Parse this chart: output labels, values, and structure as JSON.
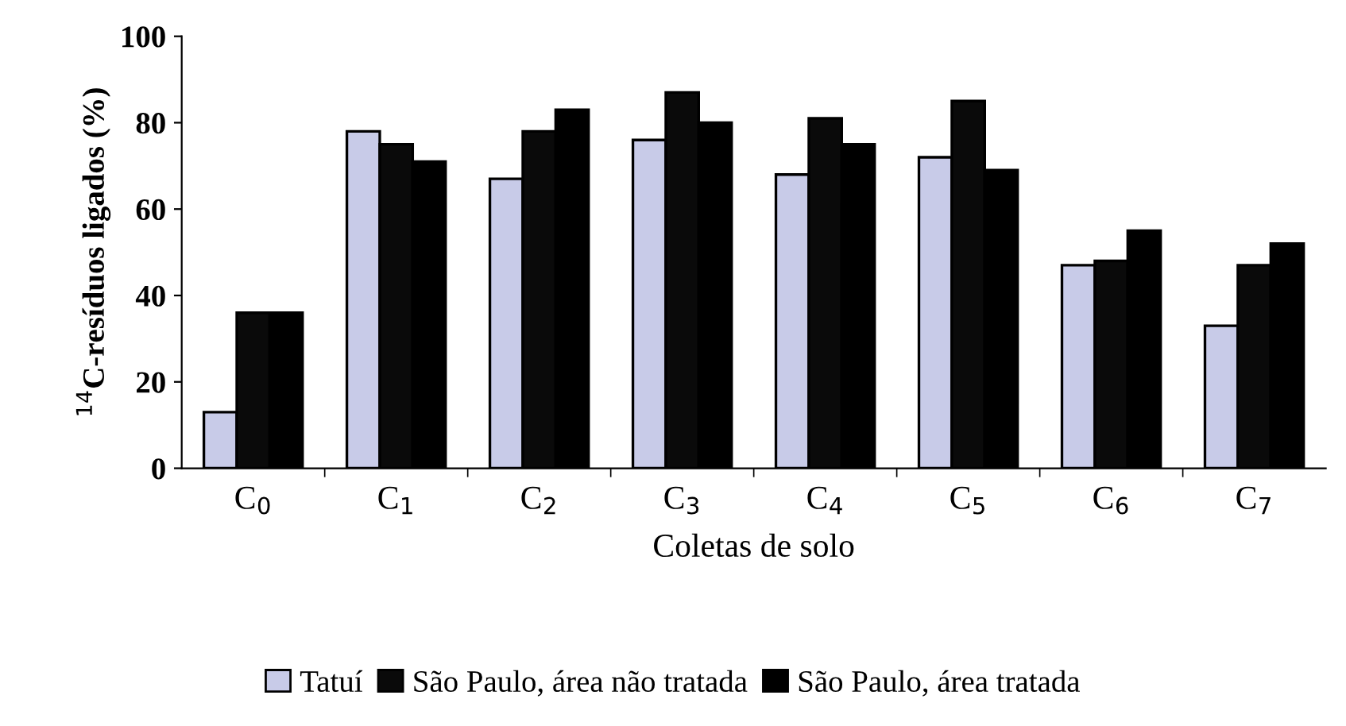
{
  "chart_data": {
    "type": "bar",
    "xlabel": "Coletas de solo",
    "ylabel": "$^{14}$C-resíduos ligados (%)",
    "categories": [
      "C$_{0}$",
      "C$_{1}$",
      "C$_{2}$",
      "C$_{3}$",
      "C$_{4}$",
      "C$_{5}$",
      "C$_{6}$",
      "C$_{7}$"
    ],
    "series": [
      {
        "name": "Tatuí",
        "color": "#c8cbe8",
        "values": [
          13,
          78,
          67,
          76,
          68,
          72,
          47,
          33
        ]
      },
      {
        "name": "São Paulo, área não tratada",
        "color": "#0a0a0a",
        "values": [
          36,
          75,
          78,
          87,
          81,
          85,
          48,
          47
        ]
      },
      {
        "name": "São Paulo, área tratada",
        "color": "#000000",
        "values": [
          36,
          71,
          83,
          80,
          75,
          69,
          55,
          52
        ]
      }
    ],
    "ylim": [
      0,
      100
    ],
    "yticks": [
      0,
      20,
      40,
      60,
      80,
      100
    ],
    "grid": false,
    "legend": "bottom"
  }
}
